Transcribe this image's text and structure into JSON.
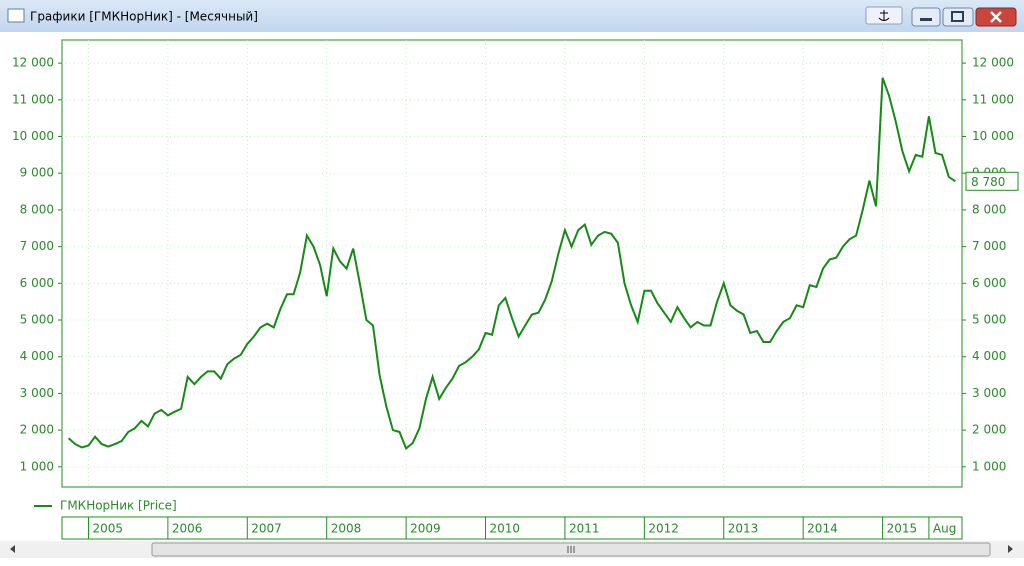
{
  "window": {
    "title": "Графики [ГМКНорНик] - [Месячный]"
  },
  "chart_data": {
    "type": "line",
    "x": [
      "2004-10",
      "2004-11",
      "2004-12",
      "2005-01",
      "2005-02",
      "2005-03",
      "2005-04",
      "2005-05",
      "2005-06",
      "2005-07",
      "2005-08",
      "2005-09",
      "2005-10",
      "2005-11",
      "2005-12",
      "2006-01",
      "2006-02",
      "2006-03",
      "2006-04",
      "2006-05",
      "2006-06",
      "2006-07",
      "2006-08",
      "2006-09",
      "2006-10",
      "2006-11",
      "2006-12",
      "2007-01",
      "2007-02",
      "2007-03",
      "2007-04",
      "2007-05",
      "2007-06",
      "2007-07",
      "2007-08",
      "2007-09",
      "2007-10",
      "2007-11",
      "2007-12",
      "2008-01",
      "2008-02",
      "2008-03",
      "2008-04",
      "2008-05",
      "2008-06",
      "2008-07",
      "2008-08",
      "2008-09",
      "2008-10",
      "2008-11",
      "2008-12",
      "2009-01",
      "2009-02",
      "2009-03",
      "2009-04",
      "2009-05",
      "2009-06",
      "2009-07",
      "2009-08",
      "2009-09",
      "2009-10",
      "2009-11",
      "2009-12",
      "2010-01",
      "2010-02",
      "2010-03",
      "2010-04",
      "2010-05",
      "2010-06",
      "2010-07",
      "2010-08",
      "2010-09",
      "2010-10",
      "2010-11",
      "2010-12",
      "2011-01",
      "2011-02",
      "2011-03",
      "2011-04",
      "2011-05",
      "2011-06",
      "2011-07",
      "2011-08",
      "2011-09",
      "2011-10",
      "2011-11",
      "2011-12",
      "2012-01",
      "2012-02",
      "2012-03",
      "2012-04",
      "2012-05",
      "2012-06",
      "2012-07",
      "2012-08",
      "2012-09",
      "2012-10",
      "2012-11",
      "2012-12",
      "2013-01",
      "2013-02",
      "2013-03",
      "2013-04",
      "2013-05",
      "2013-06",
      "2013-07",
      "2013-08",
      "2013-09",
      "2013-10",
      "2013-11",
      "2013-12",
      "2014-01",
      "2014-02",
      "2014-03",
      "2014-04",
      "2014-05",
      "2014-06",
      "2014-07",
      "2014-08",
      "2014-09",
      "2014-10",
      "2014-11",
      "2014-12",
      "2015-01",
      "2015-02",
      "2015-03",
      "2015-04",
      "2015-05",
      "2015-06",
      "2015-07",
      "2015-08",
      "2015-09",
      "2015-10",
      "2015-11",
      "2015-12"
    ],
    "series": [
      {
        "name": "ГМКНорНик [Price]",
        "color": "#168a16",
        "values": [
          1780,
          1620,
          1530,
          1580,
          1820,
          1620,
          1550,
          1620,
          1700,
          1950,
          2050,
          2250,
          2100,
          2450,
          2550,
          2400,
          2500,
          2580,
          3450,
          3250,
          3450,
          3600,
          3600,
          3400,
          3800,
          3950,
          4050,
          4350,
          4550,
          4800,
          4900,
          4800,
          5300,
          5700,
          5700,
          6300,
          7300,
          7000,
          6500,
          5650,
          6950,
          6600,
          6400,
          6950,
          6000,
          5000,
          4850,
          3500,
          2650,
          2000,
          1950,
          1500,
          1650,
          2050,
          2850,
          3450,
          2850,
          3150,
          3400,
          3750,
          3850,
          4000,
          4200,
          4650,
          4600,
          5400,
          5600,
          5050,
          4550,
          4850,
          5150,
          5200,
          5550,
          6050,
          6800,
          7450,
          7000,
          7450,
          7600,
          7050,
          7300,
          7400,
          7350,
          7100,
          6000,
          5400,
          4950,
          5800,
          5800,
          5450,
          5200,
          4950,
          5350,
          5050,
          4800,
          4950,
          4850,
          4850,
          5500,
          6000,
          5400,
          5250,
          5150,
          4650,
          4700,
          4400,
          4400,
          4700,
          4950,
          5050,
          5400,
          5350,
          5950,
          5900,
          6400,
          6650,
          6700,
          7000,
          7200,
          7300,
          8000,
          8800,
          8100,
          11600,
          11100,
          10400,
          9600,
          9050,
          9500,
          9450,
          10550,
          9550,
          9500,
          8900,
          8780
        ]
      }
    ],
    "xlim": [
      "2004-09",
      "2016-01"
    ],
    "xticks": [
      {
        "value": "2005-01",
        "label": "2005"
      },
      {
        "value": "2006-01",
        "label": "2006"
      },
      {
        "value": "2007-01",
        "label": "2007"
      },
      {
        "value": "2008-01",
        "label": "2008"
      },
      {
        "value": "2009-01",
        "label": "2009"
      },
      {
        "value": "2010-01",
        "label": "2010"
      },
      {
        "value": "2011-01",
        "label": "2011"
      },
      {
        "value": "2012-01",
        "label": "2012"
      },
      {
        "value": "2013-01",
        "label": "2013"
      },
      {
        "value": "2014-01",
        "label": "2014"
      },
      {
        "value": "2015-01",
        "label": "2015"
      },
      {
        "value": "2015-08",
        "label": "Aug"
      }
    ],
    "ylim": [
      450,
      12630
    ],
    "yticks": [
      {
        "value": 1000,
        "label": "1 000"
      },
      {
        "value": 2000,
        "label": "2 000"
      },
      {
        "value": 3000,
        "label": "3 000"
      },
      {
        "value": 4000,
        "label": "4 000"
      },
      {
        "value": 5000,
        "label": "5 000"
      },
      {
        "value": 6000,
        "label": "6 000"
      },
      {
        "value": 7000,
        "label": "7 000"
      },
      {
        "value": 8000,
        "label": "8 000"
      },
      {
        "value": 9000,
        "label": "9 000"
      },
      {
        "value": 10000,
        "label": "10 000"
      },
      {
        "value": 11000,
        "label": "11 000"
      },
      {
        "value": 12000,
        "label": "12 000"
      }
    ],
    "annotations": [
      {
        "x": "2015-12",
        "value": 8780,
        "label": "8 780"
      }
    ],
    "grid": true,
    "legend": "bottom-left"
  }
}
